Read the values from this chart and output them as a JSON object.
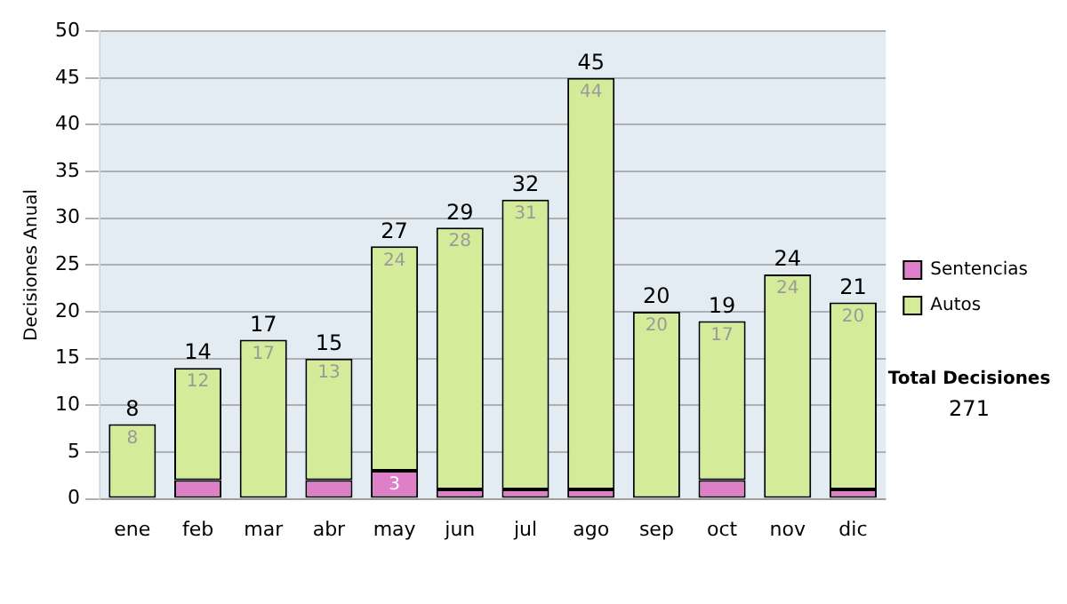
{
  "chart_data": {
    "type": "bar",
    "stacked": true,
    "ylabel": "Decisiones Anual",
    "categories": [
      "ene",
      "feb",
      "mar",
      "abr",
      "may",
      "jun",
      "jul",
      "ago",
      "sep",
      "oct",
      "nov",
      "dic"
    ],
    "series": [
      {
        "name": "Sentencias",
        "color": "#dd80c8",
        "values": [
          0,
          2,
          0,
          2,
          3,
          1,
          1,
          1,
          0,
          2,
          0,
          1
        ],
        "value_labels": [
          null,
          null,
          null,
          null,
          "3",
          null,
          null,
          null,
          null,
          null,
          null,
          null
        ]
      },
      {
        "name": "Autos",
        "color": "#d4ec9a",
        "values": [
          8,
          12,
          17,
          13,
          24,
          28,
          31,
          44,
          20,
          17,
          24,
          20
        ],
        "value_labels": [
          "8",
          "12",
          "17",
          "13",
          "24",
          "28",
          "31",
          "44",
          "20",
          "17",
          "24",
          "20"
        ]
      }
    ],
    "totals": [
      "8",
      "14",
      "17",
      "15",
      "27",
      "29",
      "32",
      "45",
      "20",
      "19",
      "24",
      "21"
    ],
    "ylim": [
      0,
      50
    ],
    "yticks": [
      0,
      5,
      10,
      15,
      20,
      25,
      30,
      35,
      40,
      45,
      50
    ],
    "grid": "y",
    "legend": "right",
    "annotations": [
      "Total Decisiones",
      "271"
    ]
  }
}
